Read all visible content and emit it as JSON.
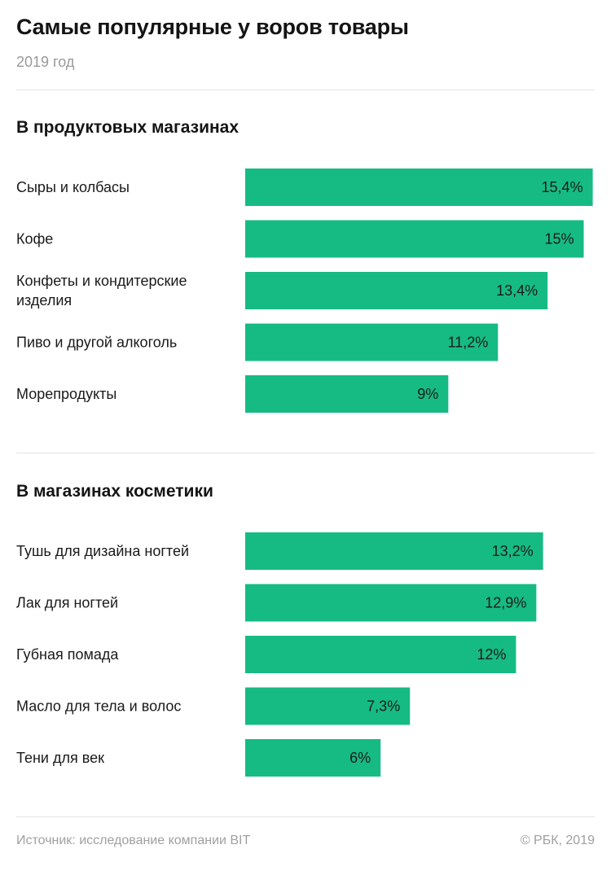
{
  "header": {
    "title": "Самые популярные у воров товары",
    "subtitle": "2019 год"
  },
  "footer": {
    "source": "Источник: исследование компании BIT",
    "copyright": "© РБК, 2019"
  },
  "colors": {
    "bar": "#16bb83",
    "text": "#1a1a1a",
    "muted": "#9a9a9a",
    "divider": "#e2e2e2"
  },
  "chart_data": [
    {
      "type": "bar",
      "orientation": "horizontal",
      "title": "В продуктовых магазинах",
      "categories": [
        [
          "Сыры и колбасы"
        ],
        [
          "Кофе"
        ],
        [
          "Конфеты и кондитерские",
          "изделия"
        ],
        [
          "Пиво и другой алкоголь"
        ],
        [
          "Морепродукты"
        ]
      ],
      "values": [
        15.4,
        15,
        13.4,
        11.2,
        9
      ],
      "value_labels": [
        "15,4%",
        "15%",
        "13,4%",
        "11,2%",
        "9%"
      ],
      "unit": "%",
      "grid": false,
      "legend": "none"
    },
    {
      "type": "bar",
      "orientation": "horizontal",
      "title": "В магазинах косметики",
      "categories": [
        [
          "Тушь для дизайна ногтей"
        ],
        [
          "Лак для ногтей"
        ],
        [
          "Губная помада"
        ],
        [
          "Масло для тела и волос"
        ],
        [
          "Тени для век"
        ]
      ],
      "values": [
        13.2,
        12.9,
        12,
        7.3,
        6
      ],
      "value_labels": [
        "13,2%",
        "12,9%",
        "12%",
        "7,3%",
        "6%"
      ],
      "unit": "%",
      "grid": false,
      "legend": "none"
    }
  ]
}
